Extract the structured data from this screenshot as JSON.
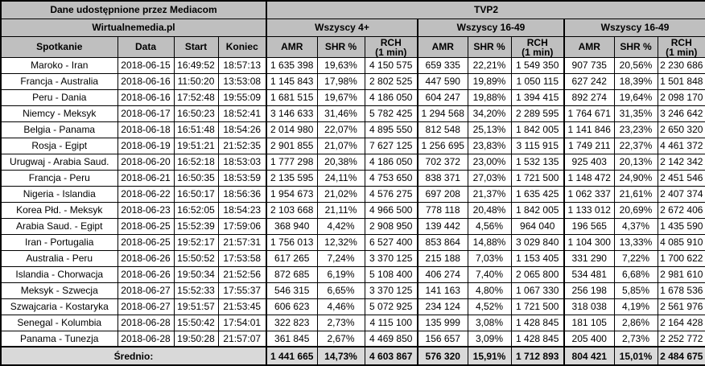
{
  "table": {
    "source_label": "Dane udostępnione przez Mediacom",
    "publisher_label": "Wirtualnemedia.pl",
    "channel": "TVP2",
    "groups": [
      "Wszyscy 4+",
      "Wszyscy 16-49",
      "Wszyscy 16-49"
    ],
    "columns": {
      "match": "Spotkanie",
      "date": "Data",
      "start": "Start",
      "end": "Koniec"
    },
    "metrics": {
      "amr": "AMR",
      "shr": "SHR %",
      "rch": "RCH\n(1 min)"
    }
  },
  "colors": {
    "header_bg": "#bfbfbf",
    "average_bg": "#d9d9d9",
    "border": "#000000",
    "cell_bg": "#ffffff"
  },
  "rows": [
    [
      "Maroko - Iran",
      "2018-06-15",
      "16:49:52",
      "18:57:13",
      "1 635 398",
      "19,63%",
      "4 150 575",
      "659 335",
      "22,21%",
      "1 549 350",
      "907 735",
      "20,56%",
      "2 230 686"
    ],
    [
      "Francja - Australia",
      "2018-06-16",
      "11:50:20",
      "13:53:08",
      "1 145 843",
      "17,98%",
      "2 802 525",
      "447 590",
      "19,89%",
      "1 050 115",
      "627 242",
      "18,39%",
      "1 501 848"
    ],
    [
      "Peru - Dania",
      "2018-06-16",
      "17:52:48",
      "19:55:09",
      "1 681 515",
      "19,67%",
      "4 186 050",
      "604 247",
      "19,88%",
      "1 394 415",
      "892 274",
      "19,64%",
      "2 098 170"
    ],
    [
      "Niemcy - Meksyk",
      "2018-06-17",
      "16:50:23",
      "18:52:41",
      "3 146 633",
      "31,46%",
      "5 782 425",
      "1 294 568",
      "34,20%",
      "2 289 595",
      "1 764 671",
      "31,35%",
      "3 246 642"
    ],
    [
      "Belgia - Panama",
      "2018-06-18",
      "16:51:48",
      "18:54:26",
      "2 014 980",
      "22,07%",
      "4 895 550",
      "812 548",
      "25,13%",
      "1 842 005",
      "1 141 846",
      "23,23%",
      "2 650 320"
    ],
    [
      "Rosja - Egipt",
      "2018-06-19",
      "19:51:21",
      "21:52:35",
      "2 901 855",
      "21,07%",
      "7 627 125",
      "1 256 695",
      "23,83%",
      "3 115 915",
      "1 749 211",
      "22,37%",
      "4 461 372"
    ],
    [
      "Urugwaj - Arabia Saud.",
      "2018-06-20",
      "16:52:18",
      "18:53:03",
      "1 777 298",
      "20,38%",
      "4 186 050",
      "702 372",
      "23,00%",
      "1 532 135",
      "925 403",
      "20,13%",
      "2 142 342"
    ],
    [
      "Francja - Peru",
      "2018-06-21",
      "16:50:35",
      "18:53:59",
      "2 135 595",
      "24,11%",
      "4 753 650",
      "838 371",
      "27,03%",
      "1 721 500",
      "1 148 472",
      "24,90%",
      "2 451 546"
    ],
    [
      "Nigeria - Islandia",
      "2018-06-22",
      "16:50:17",
      "18:56:36",
      "1 954 673",
      "21,02%",
      "4 576 275",
      "697 208",
      "21,37%",
      "1 635 425",
      "1 062 337",
      "21,61%",
      "2 407 374"
    ],
    [
      "Korea Płd. - Meksyk",
      "2018-06-23",
      "16:52:05",
      "18:54:23",
      "2 103 668",
      "21,11%",
      "4 966 500",
      "778 118",
      "20,48%",
      "1 842 005",
      "1 133 012",
      "20,69%",
      "2 672 406"
    ],
    [
      "Arabia Saud. - Egipt",
      "2018-06-25",
      "15:52:39",
      "17:59:06",
      "368 940",
      "4,42%",
      "2 908 950",
      "139 442",
      "4,56%",
      "964 040",
      "196 565",
      "4,37%",
      "1 435 590"
    ],
    [
      "Iran - Portugalia",
      "2018-06-25",
      "19:52:17",
      "21:57:31",
      "1 756 013",
      "12,32%",
      "6 527 400",
      "853 864",
      "14,88%",
      "3 029 840",
      "1 104 300",
      "13,33%",
      "4 085 910"
    ],
    [
      "Australia - Peru",
      "2018-06-26",
      "15:50:52",
      "17:53:58",
      "617 265",
      "7,24%",
      "3 370 125",
      "215 188",
      "7,03%",
      "1 153 405",
      "331 290",
      "7,22%",
      "1 700 622"
    ],
    [
      "Islandia - Chorwacja",
      "2018-06-26",
      "19:50:34",
      "21:52:56",
      "872 685",
      "6,19%",
      "5 108 400",
      "406 274",
      "7,40%",
      "2 065 800",
      "534 481",
      "6,68%",
      "2 981 610"
    ],
    [
      "Meksyk - Szwecja",
      "2018-06-27",
      "15:52:33",
      "17:55:37",
      "546 315",
      "6,65%",
      "3 370 125",
      "141 163",
      "4,80%",
      "1 067 330",
      "256 198",
      "5,85%",
      "1 678 536"
    ],
    [
      "Szwajcaria - Kostaryka",
      "2018-06-27",
      "19:51:57",
      "21:53:45",
      "606 623",
      "4,46%",
      "5 072 925",
      "234 124",
      "4,52%",
      "1 721 500",
      "318 038",
      "4,19%",
      "2 561 976"
    ],
    [
      "Senegal - Kolumbia",
      "2018-06-28",
      "15:50:42",
      "17:54:01",
      "322 823",
      "2,73%",
      "4 115 100",
      "135 999",
      "3,08%",
      "1 428 845",
      "181 105",
      "2,86%",
      "2 164 428"
    ],
    [
      "Panama - Tunezja",
      "2018-06-28",
      "19:50:28",
      "21:57:07",
      "361 845",
      "2,67%",
      "4 469 850",
      "156 657",
      "3,09%",
      "1 428 845",
      "205 400",
      "2,73%",
      "2 252 772"
    ]
  ],
  "average": {
    "label": "Średnio:",
    "cells": [
      "1 441 665",
      "14,73%",
      "4 603 867",
      "576 320",
      "15,91%",
      "1 712 893",
      "804 421",
      "15,01%",
      "2 484 675"
    ]
  }
}
